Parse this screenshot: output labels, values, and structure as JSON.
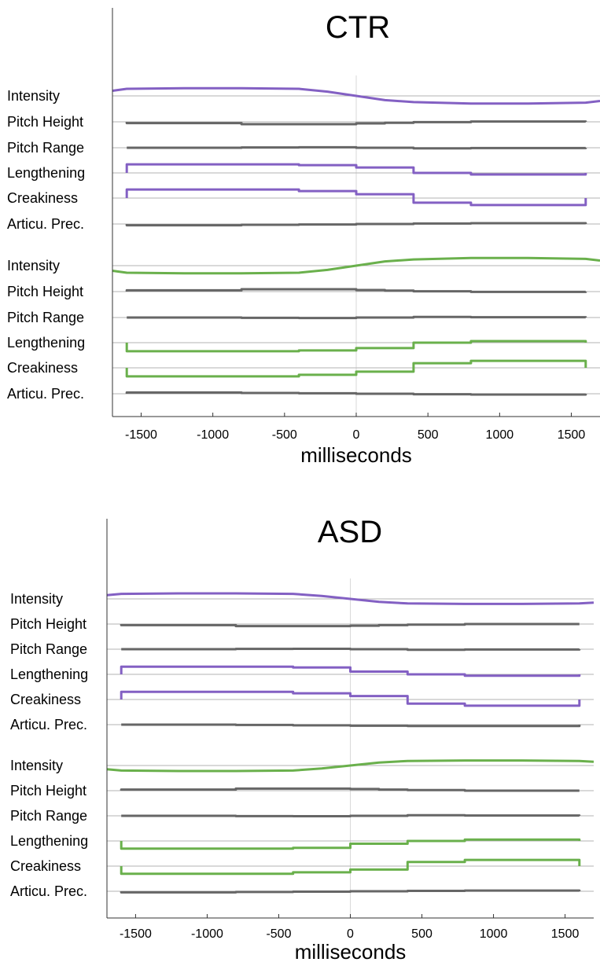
{
  "colors": {
    "purple": "#8360c3",
    "green": "#6ab04c",
    "gray": "#666666",
    "baseline": "#b3b3b3",
    "zero_line": "#d9d9d9",
    "axis": "#333333"
  },
  "chart_data": [
    {
      "type": "line",
      "title": "CTR",
      "xlabel": "milliseconds",
      "xlim": [
        -1700,
        1700
      ],
      "xticks": [
        -1500,
        -1000,
        -500,
        0,
        500,
        1000,
        1500
      ],
      "xtick_labels": [
        "-1500",
        "-1000",
        "-500",
        "0",
        "500",
        "1000",
        "1500"
      ],
      "grid": false,
      "rows_description": "each row is a separate trace; values are offsets from that row's baseline (positive = above)",
      "series": [
        {
          "name": "Intensity",
          "color": "purple",
          "group": 1,
          "smooth": true,
          "x": [
            -1700,
            -1600,
            -1200,
            -800,
            -400,
            -200,
            0,
            200,
            400,
            800,
            1200,
            1600,
            1700
          ],
          "values": [
            0.18,
            0.25,
            0.27,
            0.27,
            0.25,
            0.15,
            0.0,
            -0.15,
            -0.22,
            -0.27,
            -0.27,
            -0.24,
            -0.18
          ]
        },
        {
          "name": "Pitch Height",
          "color": "gray",
          "group": 1,
          "smooth": false,
          "x": [
            -1600,
            -800,
            -400,
            0,
            200,
            400,
            800,
            1600
          ],
          "values": [
            -0.08,
            -0.15,
            -0.15,
            -0.1,
            -0.06,
            -0.02,
            0.02,
            0.02
          ]
        },
        {
          "name": "Pitch Range",
          "color": "gray",
          "group": 1,
          "smooth": false,
          "x": [
            -1600,
            -800,
            -400,
            0,
            400,
            800,
            1600
          ],
          "values": [
            0.0,
            0.02,
            0.03,
            0.0,
            -0.04,
            -0.02,
            -0.02
          ]
        },
        {
          "name": "Lengthening",
          "color": "purple",
          "group": 1,
          "smooth": false,
          "x": [
            -1600,
            -800,
            -400,
            0,
            400,
            800,
            1600
          ],
          "values": [
            0.55,
            0.55,
            0.5,
            0.35,
            0.0,
            -0.1,
            -0.1
          ]
        },
        {
          "name": "Creakiness",
          "color": "purple",
          "group": 1,
          "smooth": false,
          "x": [
            -1600,
            -800,
            -400,
            0,
            400,
            800,
            1600
          ],
          "values": [
            0.55,
            0.55,
            0.45,
            0.25,
            -0.3,
            -0.45,
            -0.45
          ]
        },
        {
          "name": "Articu. Prec.",
          "color": "gray",
          "group": 1,
          "smooth": false,
          "x": [
            -1600,
            -800,
            -400,
            0,
            400,
            800,
            1600
          ],
          "values": [
            -0.08,
            -0.05,
            -0.03,
            0.0,
            0.03,
            0.05,
            0.05
          ]
        },
        {
          "name": "Intensity",
          "color": "green",
          "group": 2,
          "smooth": true,
          "x": [
            -1700,
            -1600,
            -1200,
            -800,
            -400,
            -200,
            0,
            200,
            400,
            800,
            1200,
            1600,
            1700
          ],
          "values": [
            -0.18,
            -0.25,
            -0.27,
            -0.27,
            -0.25,
            -0.15,
            0.0,
            0.15,
            0.22,
            0.27,
            0.27,
            0.24,
            0.18
          ]
        },
        {
          "name": "Pitch Height",
          "color": "gray",
          "group": 2,
          "smooth": false,
          "x": [
            -1600,
            -800,
            -400,
            0,
            200,
            400,
            800,
            1600
          ],
          "values": [
            0.08,
            0.15,
            0.15,
            0.1,
            0.06,
            0.02,
            -0.02,
            -0.02
          ]
        },
        {
          "name": "Pitch Range",
          "color": "gray",
          "group": 2,
          "smooth": false,
          "x": [
            -1600,
            -800,
            -400,
            0,
            400,
            800,
            1600
          ],
          "values": [
            0.0,
            -0.02,
            -0.03,
            0.0,
            0.04,
            0.02,
            0.02
          ]
        },
        {
          "name": "Lengthening",
          "color": "green",
          "group": 2,
          "smooth": false,
          "x": [
            -1600,
            -800,
            -400,
            0,
            400,
            800,
            1600
          ],
          "values": [
            -0.55,
            -0.55,
            -0.5,
            -0.35,
            0.0,
            0.1,
            0.1
          ]
        },
        {
          "name": "Creakiness",
          "color": "green",
          "group": 2,
          "smooth": false,
          "x": [
            -1600,
            -800,
            -400,
            0,
            400,
            800,
            1600
          ],
          "values": [
            -0.55,
            -0.55,
            -0.45,
            -0.25,
            0.3,
            0.45,
            0.45
          ]
        },
        {
          "name": "Articu. Prec.",
          "color": "gray",
          "group": 2,
          "smooth": false,
          "x": [
            -1600,
            -800,
            -400,
            0,
            400,
            800,
            1600
          ],
          "values": [
            0.08,
            0.05,
            0.03,
            0.0,
            -0.03,
            -0.05,
            -0.05
          ]
        }
      ]
    },
    {
      "type": "line",
      "title": "ASD",
      "xlabel": "milliseconds",
      "xlim": [
        -1700,
        1700
      ],
      "xticks": [
        -1500,
        -1000,
        -500,
        0,
        500,
        1000,
        1500
      ],
      "xtick_labels": [
        "-1500",
        "-1000",
        "-500",
        "0",
        "500",
        "1000",
        "1500"
      ],
      "grid": false,
      "rows_description": "each row is a separate trace; values are offsets from that row's baseline (positive = above)",
      "series": [
        {
          "name": "Intensity",
          "color": "purple",
          "group": 1,
          "smooth": true,
          "x": [
            -1700,
            -1600,
            -1200,
            -800,
            -400,
            -200,
            0,
            200,
            400,
            800,
            1200,
            1600,
            1700
          ],
          "values": [
            0.15,
            0.2,
            0.22,
            0.22,
            0.2,
            0.12,
            0.0,
            -0.12,
            -0.18,
            -0.2,
            -0.2,
            -0.18,
            -0.15
          ]
        },
        {
          "name": "Pitch Height",
          "color": "gray",
          "group": 1,
          "smooth": false,
          "x": [
            -1600,
            -800,
            -400,
            0,
            200,
            400,
            800,
            1600
          ],
          "values": [
            -0.08,
            -0.15,
            -0.15,
            -0.12,
            -0.08,
            -0.04,
            0.0,
            0.0
          ]
        },
        {
          "name": "Pitch Range",
          "color": "gray",
          "group": 1,
          "smooth": false,
          "x": [
            -1600,
            -800,
            -400,
            0,
            400,
            800,
            1600
          ],
          "values": [
            0.0,
            0.02,
            0.03,
            0.0,
            -0.04,
            -0.02,
            -0.02
          ]
        },
        {
          "name": "Lengthening",
          "color": "purple",
          "group": 1,
          "smooth": false,
          "x": [
            -1600,
            -800,
            -400,
            0,
            400,
            800,
            1600
          ],
          "values": [
            0.55,
            0.55,
            0.5,
            0.2,
            0.0,
            -0.1,
            -0.1
          ]
        },
        {
          "name": "Creakiness",
          "color": "purple",
          "group": 1,
          "smooth": false,
          "x": [
            -1600,
            -800,
            -400,
            0,
            400,
            800,
            1600
          ],
          "values": [
            0.55,
            0.55,
            0.45,
            0.25,
            -0.3,
            -0.45,
            -0.45
          ]
        },
        {
          "name": "Articu. Prec.",
          "color": "gray",
          "group": 1,
          "smooth": false,
          "x": [
            -1600,
            -800,
            -400,
            0,
            400,
            800,
            1600
          ],
          "values": [
            0.0,
            -0.02,
            -0.05,
            -0.08,
            -0.1,
            -0.1,
            -0.1
          ]
        },
        {
          "name": "Intensity",
          "color": "green",
          "group": 2,
          "smooth": true,
          "x": [
            -1700,
            -1600,
            -1200,
            -800,
            -400,
            -200,
            0,
            200,
            400,
            800,
            1200,
            1600,
            1700
          ],
          "values": [
            -0.15,
            -0.2,
            -0.22,
            -0.22,
            -0.2,
            -0.12,
            0.0,
            0.12,
            0.18,
            0.2,
            0.2,
            0.18,
            0.15
          ]
        },
        {
          "name": "Pitch Height",
          "color": "gray",
          "group": 2,
          "smooth": false,
          "x": [
            -1600,
            -800,
            -400,
            0,
            200,
            400,
            800,
            1600
          ],
          "values": [
            0.08,
            0.15,
            0.15,
            0.12,
            0.08,
            0.04,
            0.0,
            0.0
          ]
        },
        {
          "name": "Pitch Range",
          "color": "gray",
          "group": 2,
          "smooth": false,
          "x": [
            -1600,
            -800,
            -400,
            0,
            400,
            800,
            1600
          ],
          "values": [
            0.0,
            -0.02,
            -0.03,
            0.0,
            0.04,
            0.02,
            0.02
          ]
        },
        {
          "name": "Lengthening",
          "color": "green",
          "group": 2,
          "smooth": false,
          "x": [
            -1600,
            -800,
            -400,
            0,
            400,
            800,
            1600
          ],
          "values": [
            -0.55,
            -0.55,
            -0.5,
            -0.2,
            0.0,
            0.1,
            0.1
          ]
        },
        {
          "name": "Creakiness",
          "color": "green",
          "group": 2,
          "smooth": false,
          "x": [
            -1600,
            -800,
            -400,
            0,
            400,
            800,
            1600
          ],
          "values": [
            -0.55,
            -0.55,
            -0.45,
            -0.25,
            0.3,
            0.45,
            0.45
          ]
        },
        {
          "name": "Articu. Prec.",
          "color": "gray",
          "group": 2,
          "smooth": false,
          "x": [
            -1600,
            -800,
            -400,
            0,
            400,
            800,
            1600
          ],
          "values": [
            -0.08,
            -0.05,
            -0.03,
            0.0,
            0.03,
            0.05,
            0.05
          ]
        }
      ]
    }
  ]
}
